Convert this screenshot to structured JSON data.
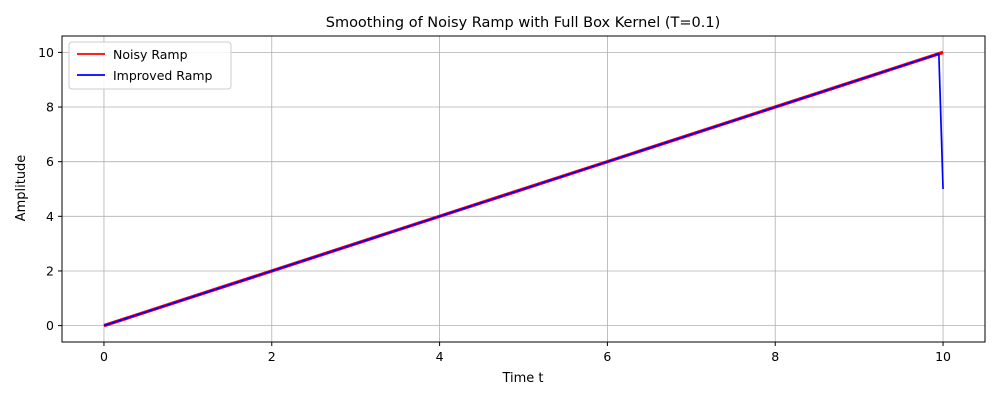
{
  "chart_data": {
    "type": "line",
    "title": "Smoothing of Noisy Ramp with Full Box Kernel (T=0.1)",
    "xlabel": "Time t",
    "ylabel": "Amplitude",
    "xlim": [
      -0.5,
      10.5
    ],
    "ylim": [
      -0.6,
      10.6
    ],
    "xticks": [
      0,
      2,
      4,
      6,
      8,
      10
    ],
    "yticks": [
      0,
      2,
      4,
      6,
      8,
      10
    ],
    "grid": true,
    "legend_position": "top-left",
    "series": [
      {
        "name": "Noisy Ramp",
        "color": "#ff0000",
        "x": [
          0,
          1,
          2,
          3,
          4,
          5,
          6,
          7,
          8,
          9,
          10
        ],
        "y": [
          0,
          1,
          2,
          3,
          4,
          5,
          6,
          7,
          8,
          9,
          10
        ]
      },
      {
        "name": "Improved Ramp",
        "color": "#0000ff",
        "x": [
          0,
          1,
          2,
          3,
          4,
          5,
          6,
          7,
          8,
          9,
          9.95,
          10
        ],
        "y": [
          0,
          1,
          2,
          3,
          4,
          5,
          6,
          7,
          8,
          9,
          9.95,
          5
        ]
      }
    ]
  }
}
